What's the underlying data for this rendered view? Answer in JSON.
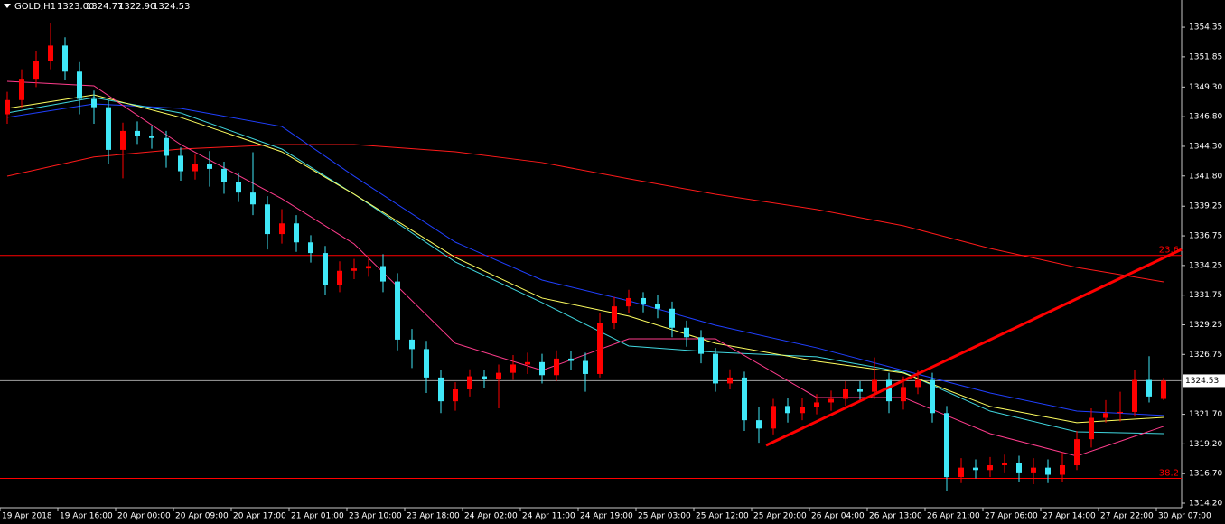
{
  "chart_data": {
    "type": "candlestick",
    "header": {
      "symbol": "GOLD,H1",
      "ohlc": [
        "1323.00",
        "1324.77",
        "1322.90",
        "1324.53"
      ]
    },
    "up_color": "#ff0000",
    "down_color": "#40e8f8",
    "xlim": [
      -0.5,
      81.25
    ],
    "ylim": [
      1313.82,
      1356.64
    ],
    "yticks": [
      1354.35,
      1351.85,
      {
        "value": 1349.3,
        "label": "1349.30"
      },
      {
        "value": 1346.8,
        "label": "1346.80"
      },
      {
        "value": 1344.3,
        "label": "1344.30"
      },
      {
        "value": 1341.8,
        "label": "1341.80"
      },
      1339.25,
      1336.75,
      1334.25,
      1331.75,
      1329.25,
      1326.75,
      {
        "value": 1321.7,
        "label": "1321.70"
      },
      {
        "value": 1319.2,
        "label": "1319.20"
      },
      {
        "value": 1316.7,
        "label": "1316.70"
      },
      {
        "value": 1314.2,
        "label": "1314.20"
      }
    ],
    "xticks": [
      {
        "value": 0,
        "label": "19 Apr 2018"
      },
      {
        "value": 4,
        "label": "19 Apr 16:00"
      },
      {
        "value": 8,
        "label": "20 Apr 00:00"
      },
      {
        "value": 12,
        "label": "20 Apr 09:00"
      },
      {
        "value": 16,
        "label": "20 Apr 17:00"
      },
      {
        "value": 20,
        "label": "21 Apr 01:00"
      },
      {
        "value": 24,
        "label": "23 Apr 10:00"
      },
      {
        "value": 28,
        "label": "23 Apr 18:00"
      },
      {
        "value": 32,
        "label": "24 Apr 02:00"
      },
      {
        "value": 36,
        "label": "24 Apr 11:00"
      },
      {
        "value": 40,
        "label": "24 Apr 19:00"
      },
      {
        "value": 44,
        "label": "25 Apr 03:00"
      },
      {
        "value": 48,
        "label": "25 Apr 12:00"
      },
      {
        "value": 52,
        "label": "25 Apr 20:00"
      },
      {
        "value": 56,
        "label": "26 Apr 04:00"
      },
      {
        "value": 60,
        "label": "26 Apr 13:00"
      },
      {
        "value": 64,
        "label": "26 Apr 21:00"
      },
      {
        "value": 68,
        "label": "27 Apr 06:00"
      },
      {
        "value": 72,
        "label": "27 Apr 14:00"
      },
      {
        "value": 76,
        "label": "27 Apr 22:00"
      },
      {
        "value": 80,
        "label": "30 Apr 07:00"
      }
    ],
    "open": [
      1347.0,
      1348.2,
      1350.0,
      1351.5,
      1352.8,
      1350.6,
      1348.3,
      1347.6,
      1344.0,
      1345.6,
      1345.2,
      1345.0,
      1343.5,
      1342.2,
      1342.8,
      1342.4,
      1341.3,
      1340.4,
      1339.4,
      1336.9,
      1337.8,
      1336.2,
      1335.3,
      1332.6,
      1333.8,
      1334.0,
      1334.2,
      1332.9,
      1328.0,
      1327.2,
      1324.8,
      1322.8,
      1323.8,
      1324.9,
      1324.7,
      1325.2,
      1325.9,
      1326.1,
      1325.0,
      1326.4,
      1326.2,
      1325.1,
      1329.4,
      1330.8,
      1331.5,
      1331.0,
      1330.6,
      1329.0,
      1328.2,
      1326.8,
      1324.3,
      1324.8,
      1321.2,
      1320.5,
      1322.4,
      1321.8,
      1322.3,
      1322.7,
      1323.0,
      1323.8,
      1323.6,
      1324.6,
      1322.8,
      1324.0,
      1324.6,
      1321.8,
      1316.4,
      1317.2,
      1317.0,
      1317.4,
      1317.6,
      1316.8,
      1317.2,
      1316.6,
      1317.4,
      1319.6,
      1321.4,
      1321.8,
      1321.9,
      1324.6,
      1323.0
    ],
    "high": [
      1348.9,
      1350.8,
      1352.3,
      1354.7,
      1353.5,
      1351.4,
      1349.0,
      1348.2,
      1346.3,
      1346.4,
      1346.0,
      1345.6,
      1344.2,
      1343.6,
      1343.9,
      1343.0,
      1342.1,
      1343.8,
      1340.1,
      1339.0,
      1338.5,
      1336.8,
      1335.9,
      1334.6,
      1334.8,
      1335.0,
      1335.2,
      1333.6,
      1328.9,
      1327.9,
      1325.4,
      1324.4,
      1325.5,
      1325.4,
      1325.9,
      1326.7,
      1326.9,
      1326.8,
      1327.1,
      1327.0,
      1326.9,
      1330.2,
      1331.6,
      1332.2,
      1332.0,
      1331.8,
      1331.2,
      1329.6,
      1328.8,
      1327.3,
      1325.5,
      1325.3,
      1322.3,
      1323.0,
      1323.1,
      1323.1,
      1323.4,
      1323.7,
      1324.5,
      1324.5,
      1326.5,
      1325.2,
      1324.9,
      1325.4,
      1325.2,
      1322.4,
      1318.0,
      1317.9,
      1318.1,
      1318.3,
      1318.2,
      1318.0,
      1317.9,
      1318.5,
      1320.3,
      1322.2,
      1322.9,
      1323.6,
      1325.4,
      1326.6,
      1324.77
    ],
    "low": [
      1346.2,
      1347.5,
      1349.3,
      1350.8,
      1349.9,
      1347.0,
      1346.2,
      1342.8,
      1341.6,
      1344.5,
      1344.1,
      1342.5,
      1341.4,
      1341.5,
      1340.9,
      1340.3,
      1339.6,
      1338.5,
      1335.6,
      1336.1,
      1335.4,
      1334.5,
      1331.8,
      1332.0,
      1333.1,
      1333.3,
      1332.0,
      1327.1,
      1325.6,
      1323.5,
      1321.8,
      1322.0,
      1323.2,
      1323.9,
      1322.2,
      1324.6,
      1325.1,
      1324.3,
      1324.5,
      1325.4,
      1323.6,
      1324.8,
      1328.9,
      1330.2,
      1330.3,
      1329.8,
      1328.2,
      1327.4,
      1326.0,
      1323.6,
      1323.8,
      1320.3,
      1319.3,
      1320.0,
      1321.0,
      1321.2,
      1321.7,
      1322.0,
      1322.4,
      1322.9,
      1323.0,
      1321.8,
      1322.1,
      1323.4,
      1321.0,
      1315.2,
      1315.9,
      1316.3,
      1316.4,
      1316.8,
      1316.0,
      1315.8,
      1315.9,
      1316.0,
      1317.0,
      1318.9,
      1321.0,
      1321.1,
      1321.5,
      1322.7,
      1322.9
    ],
    "close": [
      1348.2,
      1350.0,
      1351.5,
      1352.8,
      1350.6,
      1348.3,
      1347.6,
      1344.0,
      1345.6,
      1345.2,
      1345.0,
      1343.5,
      1342.2,
      1342.8,
      1342.4,
      1341.3,
      1340.4,
      1339.4,
      1336.9,
      1337.8,
      1336.2,
      1335.3,
      1332.6,
      1333.8,
      1334.0,
      1334.2,
      1332.9,
      1328.0,
      1327.2,
      1324.8,
      1322.8,
      1323.8,
      1324.9,
      1324.7,
      1325.2,
      1325.9,
      1326.1,
      1325.0,
      1326.4,
      1326.2,
      1325.1,
      1329.4,
      1330.8,
      1331.5,
      1331.0,
      1330.6,
      1329.0,
      1328.2,
      1326.8,
      1324.3,
      1324.8,
      1321.2,
      1320.5,
      1322.4,
      1321.8,
      1322.3,
      1322.7,
      1323.0,
      1323.8,
      1323.6,
      1324.6,
      1322.8,
      1324.0,
      1324.6,
      1321.8,
      1316.4,
      1317.2,
      1317.0,
      1317.4,
      1317.6,
      1316.8,
      1317.2,
      1316.6,
      1317.4,
      1319.6,
      1321.4,
      1321.8,
      1321.9,
      1324.6,
      1323.2,
      1324.53
    ],
    "lines": [
      {
        "color": "#ff1a1a",
        "x": [
          0,
          6,
          12,
          19,
          24,
          31,
          37,
          43,
          49,
          56,
          62,
          68,
          74,
          80
        ],
        "values": [
          1341.78,
          1343.4,
          1344.07,
          1344.45,
          1344.45,
          1343.84,
          1342.93,
          1341.56,
          1340.26,
          1338.97,
          1337.6,
          1335.69,
          1334.09,
          1332.87
        ]
      },
      {
        "color": "#2040ff",
        "x": [
          0,
          6,
          12,
          19,
          24,
          31,
          37,
          43,
          49,
          56,
          62,
          68,
          74,
          80
        ],
        "values": [
          1346.74,
          1347.88,
          1347.5,
          1345.97,
          1341.78,
          1336.22,
          1333.02,
          1331.27,
          1329.21,
          1327.31,
          1325.4,
          1323.5,
          1321.97,
          1321.6
        ]
      },
      {
        "color": "#40d8e0",
        "x": [
          0,
          6,
          12,
          19,
          24,
          31,
          37,
          43,
          49,
          56,
          62,
          68,
          74,
          80
        ],
        "values": [
          1347.12,
          1348.41,
          1347.12,
          1344.07,
          1340.26,
          1334.55,
          1331.12,
          1327.46,
          1326.93,
          1326.55,
          1325.25,
          1321.97,
          1320.22,
          1320.07
        ]
      },
      {
        "color": "#ffff60",
        "x": [
          0,
          6,
          12,
          19,
          24,
          31,
          37,
          43,
          49,
          56,
          62,
          68,
          74,
          80
        ],
        "values": [
          1347.5,
          1348.64,
          1346.74,
          1343.84,
          1340.26,
          1334.93,
          1331.5,
          1329.98,
          1327.69,
          1326.17,
          1325.18,
          1322.36,
          1320.99,
          1321.44
        ]
      },
      {
        "color": "#ff3c8c",
        "x": [
          0,
          6,
          12,
          19,
          24,
          31,
          37,
          43,
          49,
          56,
          62,
          68,
          74,
          80
        ],
        "values": [
          1349.78,
          1349.4,
          1344.45,
          1339.88,
          1336.07,
          1327.69,
          1325.4,
          1328.07,
          1328.07,
          1323.12,
          1323.12,
          1320.07,
          1318.17,
          1320.68
        ]
      }
    ],
    "levels": [
      {
        "value": 1335.1,
        "label": "23.6",
        "color": "#ff0000"
      },
      {
        "value": 1316.3,
        "label": "38.2",
        "color": "#ff0000"
      }
    ],
    "current_price": 1324.53,
    "trendline": {
      "color": "#ff0000",
      "x": [
        52.5,
        81.25
      ],
      "values": [
        1319.08,
        1335.61
      ]
    }
  }
}
